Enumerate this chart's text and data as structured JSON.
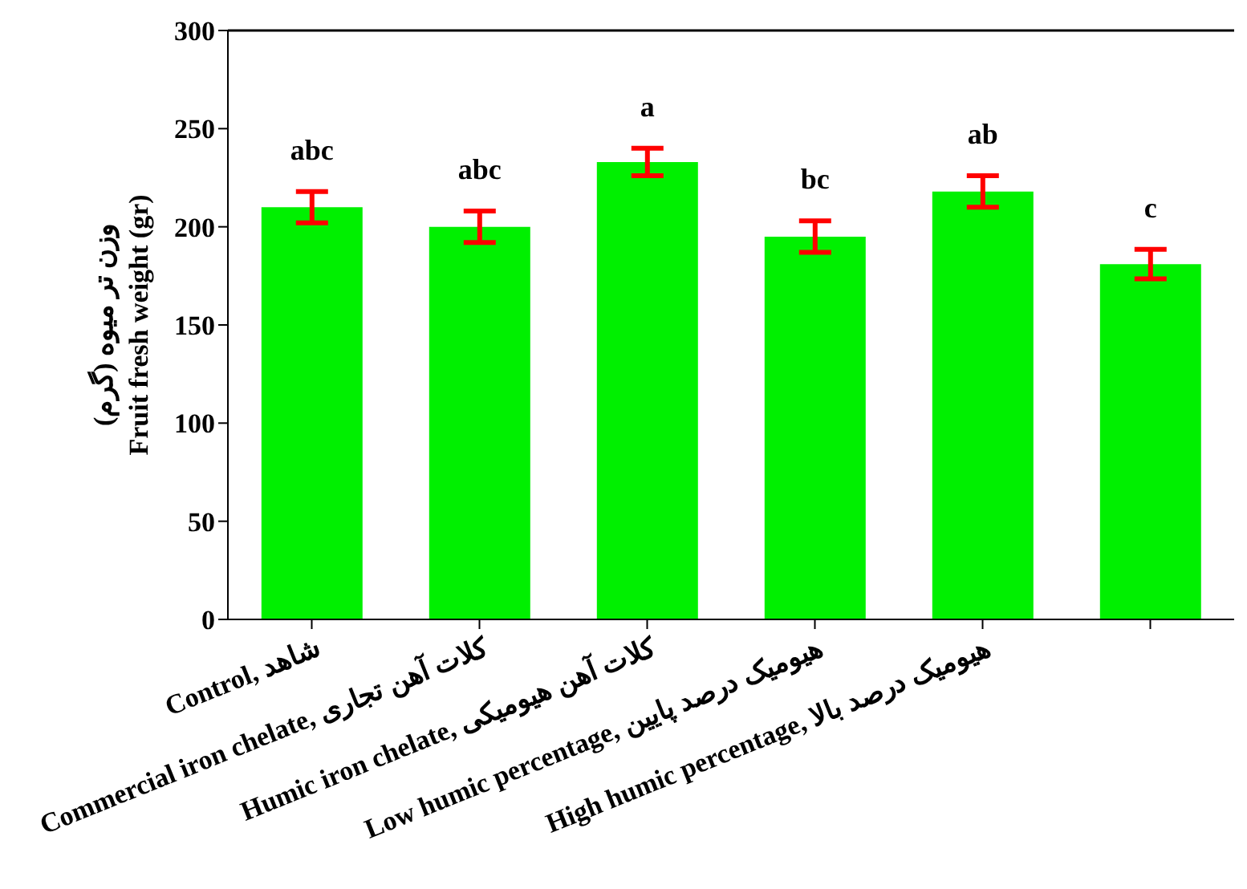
{
  "chart_data": {
    "type": "bar",
    "ylabel": "وزن تر میوه (گرم)\nFruit  fresh weight (gr)",
    "categories": [
      "Control, شاهد",
      "Commercial iron chelate,  کلات آهن تجاری",
      "Humic iron chelate,  کلات آهن هیومیکی",
      "Low humic percentage, هیومیک درصد پایین",
      "High humic percentage, هیومیک درصد بالا",
      null
    ],
    "series": [
      {
        "color": "#00f000",
        "values": [
          210,
          200,
          233,
          195,
          218,
          181
        ],
        "errors": [
          8,
          8,
          7,
          8,
          8,
          7.5
        ],
        "value_labels": [
          "abc",
          "abc",
          "a",
          "bc",
          "ab",
          "c"
        ]
      }
    ],
    "ylim": [
      0,
      300
    ],
    "yticks": [
      0,
      50,
      100,
      150,
      200,
      250,
      300
    ],
    "grid": false,
    "legend": false
  }
}
